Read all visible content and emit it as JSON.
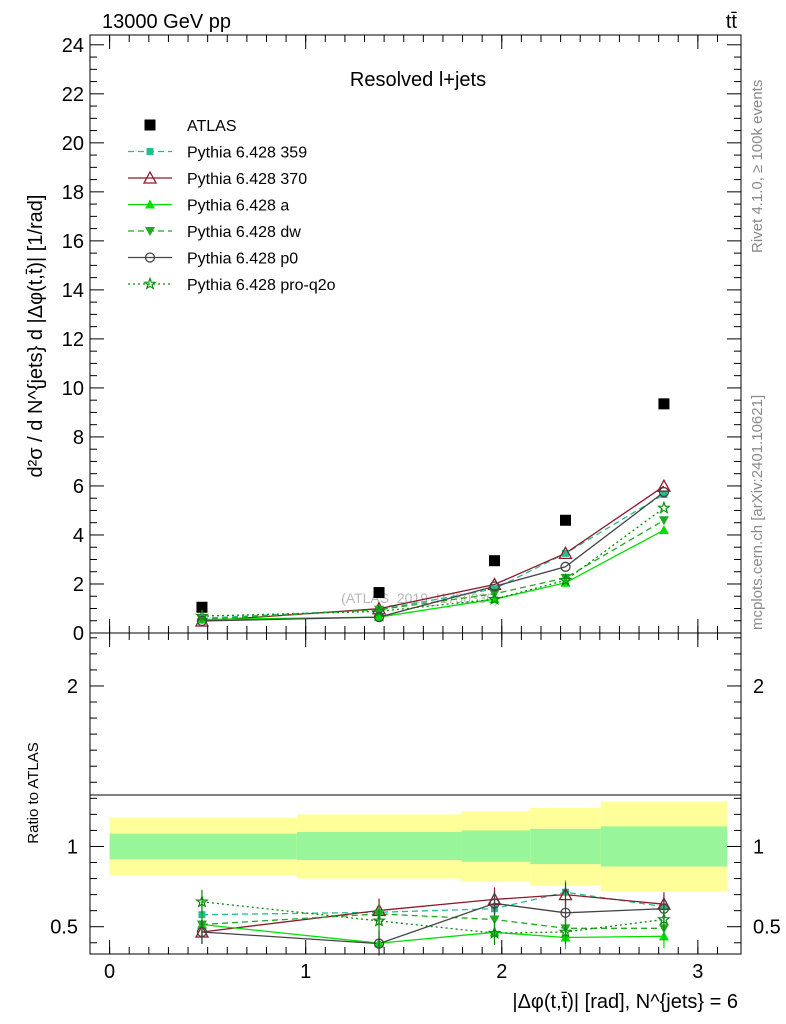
{
  "header": {
    "left": "13000 GeV pp",
    "right": "tt̄"
  },
  "side_labels": {
    "rivet": "Rivet 4.1.0, ≥ 100k events",
    "mcplots": "mcplots.cern.ch [arXiv:2401.10621]"
  },
  "watermark": "(ATLAS_2019_I1750330)",
  "chart_data": [
    {
      "type": "scatter",
      "title": "Resolved l+jets",
      "ylabel": "d²σ / d N^{jets} d |Δφ(t,t̄)| [1/rad]",
      "xlim": [
        -0.1,
        3.22
      ],
      "ylim": [
        0,
        24.4
      ],
      "yticks": [
        0,
        2,
        4,
        6,
        8,
        10,
        12,
        14,
        16,
        18,
        20,
        22,
        24
      ],
      "x": [
        0.471,
        1.374,
        1.963,
        2.325,
        2.827
      ],
      "series": [
        {
          "name": "ATLAS",
          "color": "#000000",
          "marker": "square",
          "line": "none",
          "values": [
            1.05,
            1.65,
            2.95,
            4.6,
            9.35
          ]
        },
        {
          "name": "Pythia 6.428 359",
          "color": "#21bf8f",
          "marker": "smallsquare",
          "line": "dashed",
          "values": [
            0.6,
            0.95,
            1.8,
            3.25,
            5.65
          ]
        },
        {
          "name": "Pythia 6.428 370",
          "color": "#8b1a2a",
          "marker": "triangle-open",
          "line": "solid",
          "values": [
            0.49,
            0.99,
            1.98,
            3.25,
            5.99
          ]
        },
        {
          "name": "Pythia 6.428 a",
          "color": "#00e000",
          "marker": "triangle",
          "line": "solid",
          "values": [
            0.55,
            0.65,
            1.38,
            2.05,
            4.2
          ]
        },
        {
          "name": "Pythia 6.428 dw",
          "color": "#1faa1f",
          "marker": "triangle-down",
          "line": "dashed",
          "values": [
            0.55,
            0.95,
            1.6,
            2.25,
            4.6
          ]
        },
        {
          "name": "Pythia 6.428 p0",
          "color": "#444444",
          "marker": "circle-open",
          "line": "solid",
          "values": [
            0.49,
            0.65,
            1.9,
            2.7,
            5.75
          ]
        },
        {
          "name": "Pythia 6.428 pro-q2o",
          "color": "#0a8a0a",
          "marker": "star",
          "line": "dotted",
          "values": [
            0.69,
            0.88,
            1.38,
            2.15,
            5.1
          ]
        }
      ]
    },
    {
      "type": "scatter",
      "ylabel": "Ratio to ATLAS",
      "xlabel": "|Δφ(t,t̄)| [rad], N^{jets} = 6",
      "xlim": [
        -0.1,
        3.22
      ],
      "ylim": [
        0.33,
        2.33
      ],
      "yticks": [
        0.5,
        1,
        2
      ],
      "xticks": [
        0,
        1,
        2,
        3
      ],
      "band_edges": [
        0,
        0.955,
        1.795,
        2.145,
        2.505,
        3.15
      ],
      "band_inner": [
        [
          0.92,
          1.08
        ],
        [
          0.915,
          1.09
        ],
        [
          0.905,
          1.1
        ],
        [
          0.89,
          1.11
        ],
        [
          0.875,
          1.125
        ]
      ],
      "band_outer": [
        [
          0.82,
          1.18
        ],
        [
          0.8,
          1.2
        ],
        [
          0.78,
          1.22
        ],
        [
          0.76,
          1.24
        ],
        [
          0.72,
          1.28
        ]
      ],
      "x": [
        0.471,
        1.374,
        1.963,
        2.325,
        2.827
      ],
      "series": [
        {
          "name": "Pythia 6.428 359",
          "values": [
            0.575,
            0.59,
            0.612,
            0.715,
            0.625
          ]
        },
        {
          "name": "Pythia 6.428 370",
          "values": [
            0.467,
            0.601,
            0.67,
            0.7,
            0.64
          ]
        },
        {
          "name": "Pythia 6.428 a",
          "values": [
            0.514,
            0.397,
            0.465,
            0.433,
            0.44
          ]
        },
        {
          "name": "Pythia 6.428 dw",
          "values": [
            0.514,
            0.58,
            0.545,
            0.49,
            0.49
          ]
        },
        {
          "name": "Pythia 6.428 p0",
          "values": [
            0.467,
            0.395,
            0.645,
            0.587,
            0.612
          ]
        },
        {
          "name": "Pythia 6.428 pro-q2o",
          "values": [
            0.655,
            0.536,
            0.46,
            0.467,
            0.545
          ]
        }
      ]
    }
  ]
}
